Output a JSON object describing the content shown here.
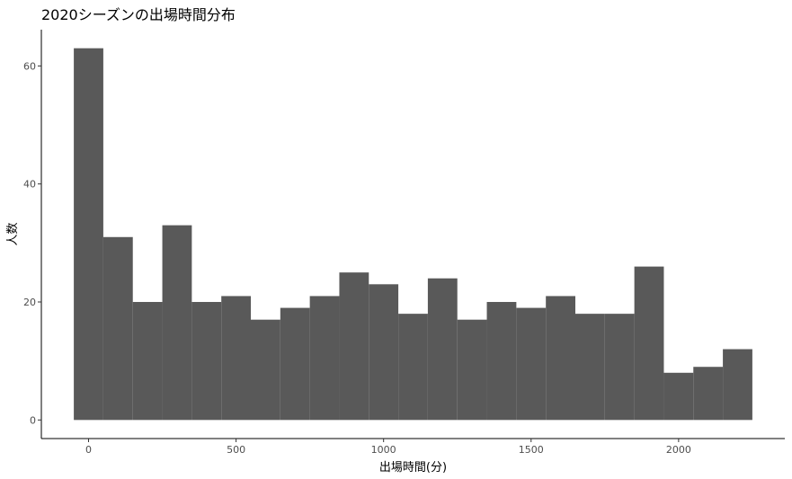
{
  "chart_data": {
    "type": "bar",
    "title": "2020シーズンの出場時間分布",
    "xlabel": "出場時間(分)",
    "ylabel": "人数",
    "bin_width": 100,
    "bin_centers": [
      0,
      100,
      200,
      300,
      400,
      500,
      600,
      700,
      800,
      900,
      1000,
      1100,
      1200,
      1300,
      1400,
      1500,
      1600,
      1700,
      1800,
      1900,
      2000,
      2100,
      2200
    ],
    "values": [
      63,
      31,
      20,
      33,
      20,
      21,
      17,
      19,
      21,
      25,
      23,
      18,
      24,
      17,
      20,
      19,
      21,
      18,
      18,
      26,
      8,
      9,
      12
    ],
    "xlim": [
      -160,
      2360
    ],
    "ylim": [
      -3.15,
      66.15
    ],
    "x_ticks": [
      0,
      500,
      1000,
      1500,
      2000
    ],
    "x_tick_labels": [
      "0",
      "500",
      "1000",
      "1500",
      "2000"
    ],
    "y_ticks": [
      0,
      20,
      40,
      60
    ],
    "y_tick_labels": [
      "0",
      "20",
      "40",
      "60"
    ],
    "grid": false,
    "bar_color": "#595959"
  }
}
